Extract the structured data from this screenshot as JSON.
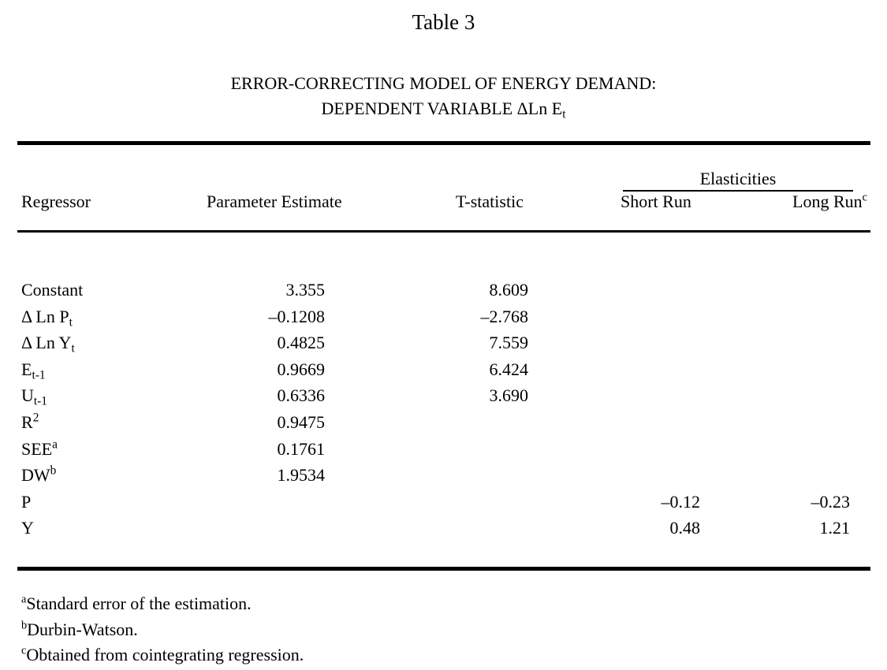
{
  "title": "Table 3",
  "heading_line1": "ERROR-CORRECTING MODEL OF ENERGY DEMAND:",
  "heading_line2": "DEPENDENT VARIABLE ΔLn E",
  "heading_line2_sub": "t",
  "columns": {
    "regressor": "Regressor",
    "parameter": "Parameter Estimate",
    "tstat": "T-statistic",
    "group": "Elasticities",
    "short_run": "Short Run",
    "long_run": "Long Run",
    "long_run_mark": "c"
  },
  "rows": [
    {
      "label": "Constant",
      "sub": "",
      "sup": "",
      "estimate": "3.355",
      "tstat": "8.609",
      "short": "",
      "long": ""
    },
    {
      "label": "Δ Ln P",
      "sub": "t",
      "sup": "",
      "estimate": "–0.1208",
      "tstat": "–2.768",
      "short": "",
      "long": ""
    },
    {
      "label": "Δ Ln Y",
      "sub": "t",
      "sup": "",
      "estimate": "0.4825",
      "tstat": "7.559",
      "short": "",
      "long": ""
    },
    {
      "label": "E",
      "sub": "t-1",
      "sup": "",
      "estimate": "0.9669",
      "tstat": "6.424",
      "short": "",
      "long": ""
    },
    {
      "label": "U",
      "sub": "t-1",
      "sup": "",
      "estimate": "0.6336",
      "tstat": "3.690",
      "short": "",
      "long": ""
    },
    {
      "label": "R",
      "sub": "",
      "sup": "2",
      "estimate": "0.9475",
      "tstat": "",
      "short": "",
      "long": ""
    },
    {
      "label": "SEE",
      "sub": "",
      "sup": "a",
      "estimate": "0.1761",
      "tstat": "",
      "short": "",
      "long": ""
    },
    {
      "label": "DW",
      "sub": "",
      "sup": "b",
      "estimate": "1.9534",
      "tstat": "",
      "short": "",
      "long": ""
    },
    {
      "label": "P",
      "sub": "",
      "sup": "",
      "estimate": "",
      "tstat": "",
      "short": "–0.12",
      "long": "–0.23"
    },
    {
      "label": "Y",
      "sub": "",
      "sup": "",
      "estimate": "",
      "tstat": "",
      "short": "0.48",
      "long": "1.21"
    }
  ],
  "footnotes": [
    {
      "mark": "a",
      "text": "Standard error of the estimation."
    },
    {
      "mark": "b",
      "text": "Durbin-Watson."
    },
    {
      "mark": "c",
      "text": "Obtained from cointegrating regression."
    }
  ]
}
